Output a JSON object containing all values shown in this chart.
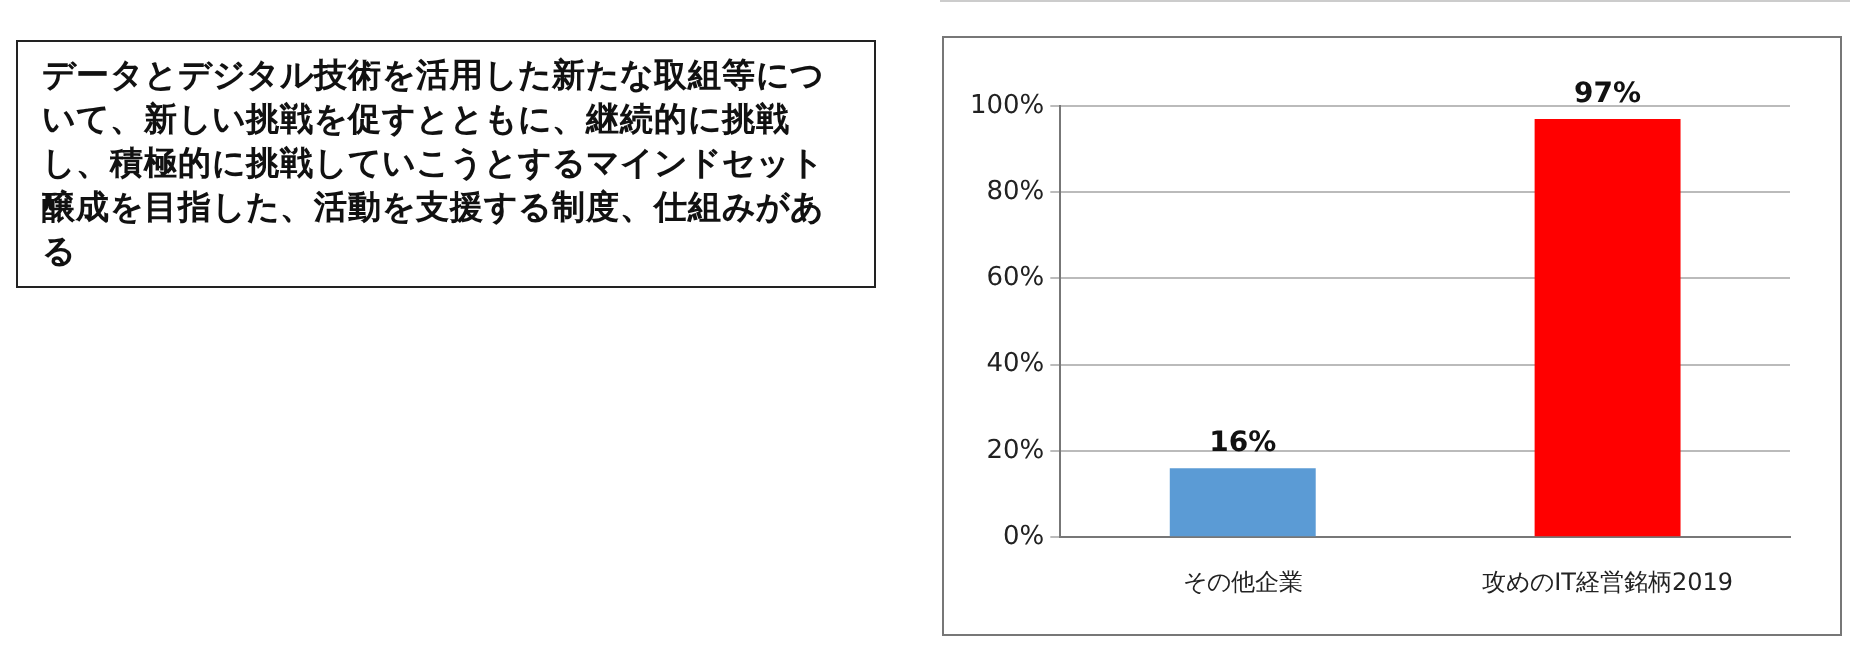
{
  "chart_data": {
    "type": "bar",
    "title": "データとデジタル技術を活用した新たな取組等について、新しい挑戦を促すとともに、継続的に挑戦し、積極的に挑戦していこうとするマインドセット醸成を目指した、活動を支援する制度、仕組みがある",
    "categories": [
      "その他企業",
      "攻めのIT経営銘柄2019"
    ],
    "values": [
      16,
      97
    ],
    "colors": [
      "#5b9bd5",
      "#ff0000"
    ],
    "value_labels": [
      "16%",
      "97%"
    ],
    "ylim": [
      0,
      100
    ],
    "yticks": [
      {
        "value": 0,
        "label": "0%"
      },
      {
        "value": 20,
        "label": "20%"
      },
      {
        "value": 40,
        "label": "40%"
      },
      {
        "value": 60,
        "label": "60%"
      },
      {
        "value": 80,
        "label": "80%"
      },
      {
        "value": 100,
        "label": "100%"
      }
    ],
    "grid": "y",
    "legend": false
  }
}
